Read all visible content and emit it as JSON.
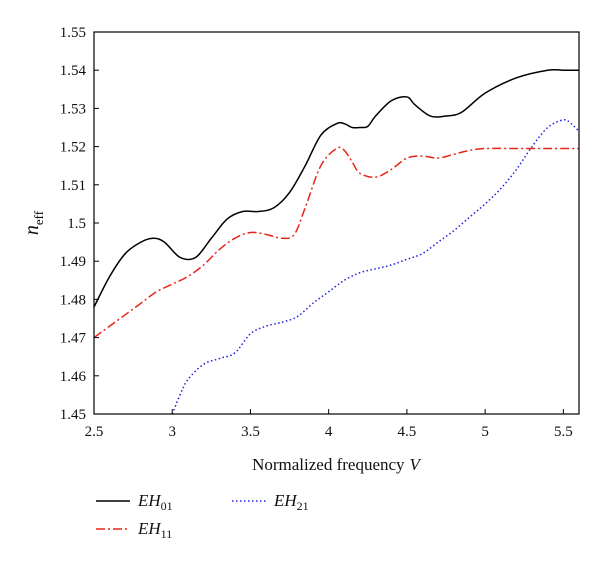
{
  "chart_data": {
    "type": "line",
    "xlabel_main": "Normalized frequency",
    "xlabel_var": "V",
    "ylabel_main": "n",
    "ylabel_sub": "eff",
    "xlim": [
      2.5,
      5.6
    ],
    "ylim": [
      1.45,
      1.55
    ],
    "xticks": [
      "2.5",
      "3",
      "3.5",
      "4",
      "4.5",
      "5",
      "5.5"
    ],
    "yticks": [
      "1.45",
      "1.46",
      "1.47",
      "1.48",
      "1.49",
      "1.5",
      "1.51",
      "1.52",
      "1.53",
      "1.54",
      "1.55"
    ],
    "grid": false,
    "legend_position": "bottom-left",
    "series": [
      {
        "name_main": "EH",
        "name_sub": "01",
        "color": "#000000",
        "style": "solid",
        "x": [
          2.5,
          2.6,
          2.7,
          2.8,
          2.88,
          2.95,
          3.05,
          3.15,
          3.25,
          3.35,
          3.45,
          3.55,
          3.65,
          3.75,
          3.85,
          3.95,
          4.05,
          4.1,
          4.15,
          4.2,
          4.25,
          4.3,
          4.4,
          4.5,
          4.55,
          4.65,
          4.75,
          4.85,
          5.0,
          5.2,
          5.4,
          5.5,
          5.6
        ],
        "y": [
          1.478,
          1.486,
          1.492,
          1.495,
          1.496,
          1.495,
          1.491,
          1.491,
          1.496,
          1.501,
          1.503,
          1.503,
          1.504,
          1.508,
          1.515,
          1.523,
          1.526,
          1.526,
          1.525,
          1.525,
          1.5253,
          1.528,
          1.532,
          1.533,
          1.531,
          1.528,
          1.528,
          1.529,
          1.534,
          1.538,
          1.54,
          1.54,
          1.54
        ]
      },
      {
        "name_main": "EH",
        "name_sub": "11",
        "color": "#e8251a",
        "style": "dashdot",
        "x": [
          2.5,
          2.6,
          2.7,
          2.8,
          2.9,
          3.0,
          3.1,
          3.2,
          3.3,
          3.4,
          3.5,
          3.6,
          3.7,
          3.78,
          3.85,
          3.95,
          4.05,
          4.1,
          4.15,
          4.2,
          4.3,
          4.4,
          4.5,
          4.6,
          4.7,
          4.8,
          4.9,
          5.0,
          5.2,
          5.4,
          5.6
        ],
        "y": [
          1.47,
          1.473,
          1.476,
          1.479,
          1.482,
          1.484,
          1.486,
          1.489,
          1.493,
          1.496,
          1.4975,
          1.497,
          1.496,
          1.497,
          1.504,
          1.515,
          1.5195,
          1.519,
          1.516,
          1.513,
          1.512,
          1.514,
          1.517,
          1.5175,
          1.517,
          1.518,
          1.519,
          1.5195,
          1.5195,
          1.5195,
          1.5195
        ]
      },
      {
        "name_main": "EH",
        "name_sub": "21",
        "color": "#2020e0",
        "style": "dotted",
        "x": [
          3.0,
          3.05,
          3.1,
          3.2,
          3.3,
          3.4,
          3.5,
          3.6,
          3.7,
          3.8,
          3.9,
          4.0,
          4.1,
          4.2,
          4.3,
          4.4,
          4.5,
          4.6,
          4.7,
          4.8,
          4.9,
          5.0,
          5.1,
          5.2,
          5.3,
          5.4,
          5.5,
          5.55,
          5.6
        ],
        "y": [
          1.45,
          1.455,
          1.459,
          1.463,
          1.4645,
          1.466,
          1.471,
          1.473,
          1.474,
          1.4755,
          1.479,
          1.482,
          1.485,
          1.487,
          1.488,
          1.489,
          1.4905,
          1.492,
          1.495,
          1.498,
          1.5015,
          1.505,
          1.509,
          1.514,
          1.52,
          1.525,
          1.527,
          1.526,
          1.524
        ]
      }
    ]
  }
}
